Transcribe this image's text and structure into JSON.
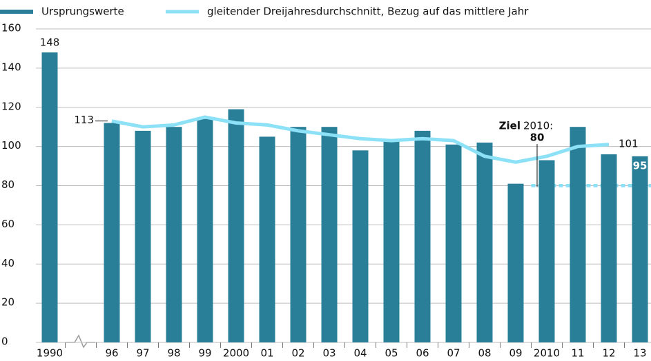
{
  "chart_data": {
    "type": "bar",
    "categories": [
      "1990",
      null,
      "96",
      "97",
      "98",
      "99",
      "2000",
      "01",
      "02",
      "03",
      "04",
      "05",
      "06",
      "07",
      "08",
      "09",
      "2010",
      "11",
      "12",
      "13"
    ],
    "series": [
      {
        "name": "Ursprungswerte",
        "type": "bar",
        "color": "#2a7f98",
        "values": [
          148,
          null,
          112,
          108,
          110,
          114,
          119,
          105,
          110,
          110,
          98,
          103,
          108,
          101,
          102,
          81,
          93,
          110,
          96,
          95
        ]
      },
      {
        "name": "gleitender Dreijahresdurchschnitt, Bezug auf das mittlere Jahr",
        "type": "line",
        "color": "#8ce1f7",
        "values": [
          null,
          null,
          113,
          110,
          111,
          115,
          112,
          111,
          108,
          106,
          104,
          103,
          104,
          103,
          95,
          92,
          95,
          100,
          101,
          null
        ]
      }
    ],
    "target": {
      "label": "Ziel",
      "year": "2010:",
      "value": 80,
      "color": "#8ce1f7"
    },
    "ylim": [
      0,
      160
    ],
    "yticks": [
      0,
      20,
      40,
      60,
      80,
      100,
      120,
      140,
      160
    ],
    "grid": true
  }
}
